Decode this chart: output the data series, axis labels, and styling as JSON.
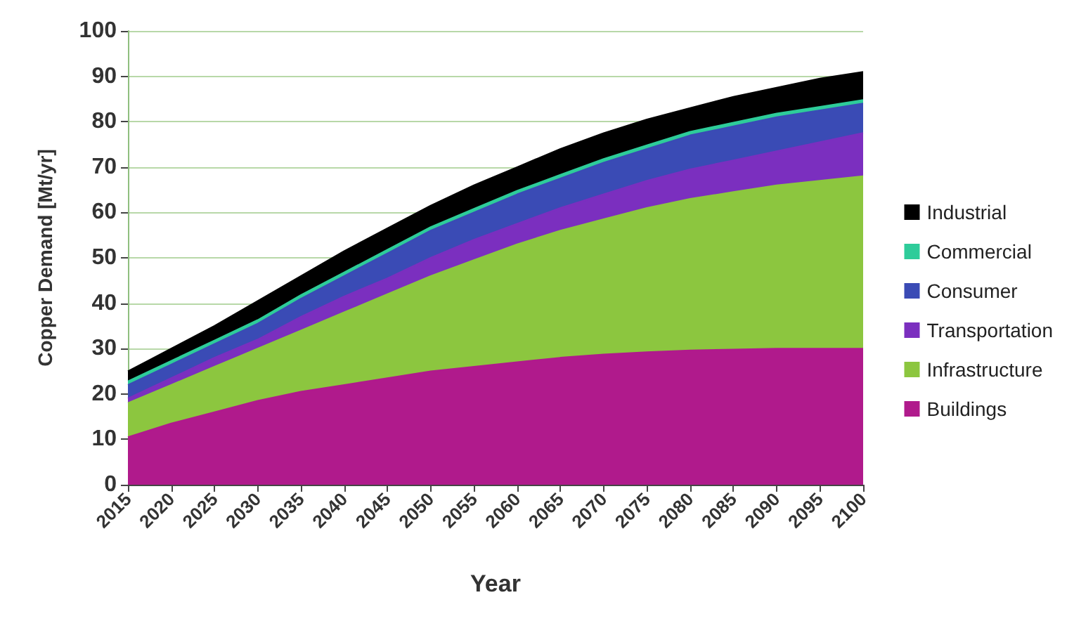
{
  "chart_data": {
    "type": "area",
    "stacked": true,
    "xlabel": "Year",
    "ylabel": "Copper Demand [Mt/yr]",
    "x": [
      2015,
      2020,
      2025,
      2030,
      2035,
      2040,
      2045,
      2050,
      2055,
      2060,
      2065,
      2070,
      2075,
      2080,
      2085,
      2090,
      2095,
      2100
    ],
    "series": [
      {
        "name": "Buildings",
        "color": "#b01a8c",
        "values": [
          10.5,
          13.5,
          16,
          18.5,
          20.5,
          22,
          23.5,
          25,
          26,
          27,
          28,
          28.7,
          29.2,
          29.6,
          29.8,
          30,
          30,
          30
        ]
      },
      {
        "name": "Infrastructure",
        "color": "#8cc63f",
        "values": [
          7.5,
          8.5,
          10,
          11.5,
          13.5,
          16,
          18.5,
          21,
          23.5,
          26,
          28,
          29.8,
          31.8,
          33.4,
          34.7,
          36,
          37,
          38
        ]
      },
      {
        "name": "Transportation",
        "color": "#7b2fbf",
        "values": [
          1,
          1.5,
          2,
          2,
          3,
          3.5,
          3.5,
          4,
          4.5,
          4.5,
          5,
          5.5,
          6,
          6.5,
          7,
          7.5,
          8.5,
          9.5
        ]
      },
      {
        "name": "Consumer",
        "color": "#3a4bb5",
        "values": [
          3,
          3,
          3,
          3.5,
          4,
          4.5,
          5.5,
          6,
          6,
          6.5,
          6.5,
          7,
          7,
          7.5,
          7.5,
          7.5,
          7,
          6.5
        ]
      },
      {
        "name": "Commercial",
        "color": "#2ecc9a",
        "values": [
          0.8,
          0.8,
          0.8,
          0.8,
          0.8,
          0.8,
          0.8,
          0.8,
          0.8,
          0.8,
          0.8,
          0.8,
          0.8,
          0.8,
          0.8,
          0.8,
          0.8,
          0.8
        ]
      },
      {
        "name": "Industrial",
        "color": "#000000",
        "values": [
          2.2,
          2.7,
          3.2,
          4.2,
          4.2,
          4.7,
          4.7,
          4.7,
          5.2,
          5.2,
          5.7,
          5.7,
          5.7,
          5.2,
          5.7,
          5.7,
          6.2,
          6.2
        ]
      }
    ],
    "xlim": [
      2015,
      2100
    ],
    "xticks": [
      2015,
      2020,
      2025,
      2030,
      2035,
      2040,
      2045,
      2050,
      2055,
      2060,
      2065,
      2070,
      2075,
      2080,
      2085,
      2090,
      2095,
      2100
    ],
    "ylim": [
      0,
      100
    ],
    "yticks": [
      0,
      10,
      20,
      30,
      40,
      50,
      60,
      70,
      80,
      90,
      100
    ],
    "grid": "y",
    "legend": "right",
    "marker": "none"
  }
}
